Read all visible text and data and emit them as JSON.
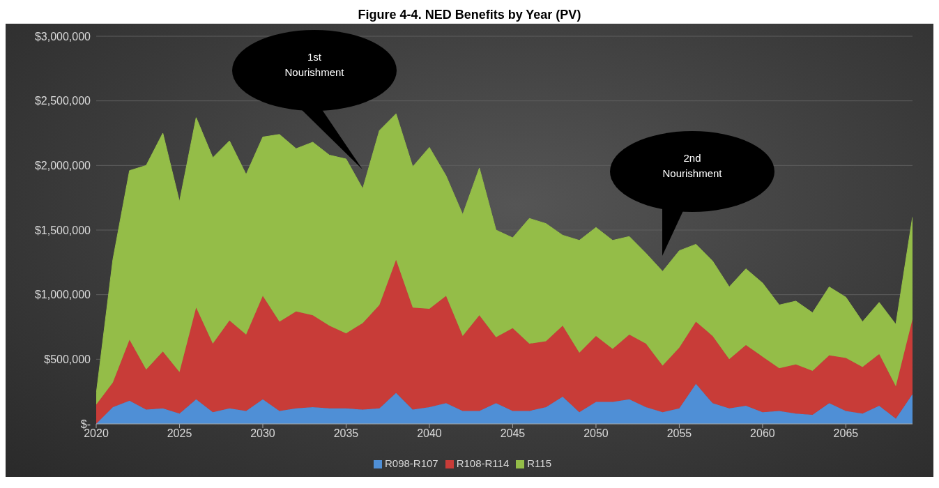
{
  "chart_data": {
    "type": "area",
    "title": "Figure 4-4. NED Benefits by Year (PV)",
    "stacked": true,
    "x": [
      2020,
      2021,
      2022,
      2023,
      2024,
      2025,
      2026,
      2027,
      2028,
      2029,
      2030,
      2031,
      2032,
      2033,
      2034,
      2035,
      2036,
      2037,
      2038,
      2039,
      2040,
      2041,
      2042,
      2043,
      2044,
      2045,
      2046,
      2047,
      2048,
      2049,
      2050,
      2051,
      2052,
      2053,
      2054,
      2055,
      2056,
      2057,
      2058,
      2059,
      2060,
      2061,
      2062,
      2063,
      2064,
      2065,
      2066,
      2067,
      2068,
      2069
    ],
    "series": [
      {
        "name": "R098-R107",
        "color": "#4f8fd6",
        "values": [
          0,
          130000,
          180000,
          110000,
          120000,
          80000,
          190000,
          90000,
          120000,
          100000,
          190000,
          100000,
          120000,
          130000,
          120000,
          120000,
          110000,
          120000,
          240000,
          110000,
          130000,
          160000,
          100000,
          100000,
          160000,
          100000,
          100000,
          130000,
          210000,
          90000,
          170000,
          170000,
          190000,
          130000,
          90000,
          120000,
          310000,
          160000,
          120000,
          140000,
          90000,
          100000,
          80000,
          70000,
          160000,
          100000,
          80000,
          140000,
          40000,
          230000
        ]
      },
      {
        "name": "R108-R114",
        "color": "#c83c38",
        "values": [
          148000,
          190000,
          470000,
          310000,
          440000,
          320000,
          710000,
          530000,
          680000,
          590000,
          800000,
          690000,
          750000,
          710000,
          640000,
          580000,
          670000,
          800000,
          1030000,
          790000,
          760000,
          830000,
          580000,
          740000,
          510000,
          640000,
          520000,
          510000,
          550000,
          460000,
          510000,
          410000,
          500000,
          490000,
          360000,
          470000,
          480000,
          520000,
          380000,
          470000,
          430000,
          330000,
          380000,
          340000,
          370000,
          410000,
          360000,
          400000,
          250000,
          580000
        ]
      },
      {
        "name": "R115",
        "color": "#94bd48",
        "values": [
          82000,
          950000,
          1310000,
          1580000,
          1690000,
          1320000,
          1470000,
          1440000,
          1390000,
          1240000,
          1230000,
          1450000,
          1260000,
          1340000,
          1320000,
          1350000,
          1040000,
          1350000,
          1130000,
          1090000,
          1250000,
          930000,
          940000,
          1140000,
          830000,
          700000,
          970000,
          910000,
          700000,
          870000,
          840000,
          840000,
          760000,
          700000,
          730000,
          750000,
          600000,
          580000,
          560000,
          590000,
          570000,
          490000,
          490000,
          450000,
          530000,
          470000,
          350000,
          400000,
          480000,
          790000
        ]
      }
    ],
    "xlim": [
      2020,
      2069
    ],
    "xticks": [
      2020,
      2025,
      2030,
      2035,
      2040,
      2045,
      2050,
      2055,
      2060,
      2065
    ],
    "ylim": [
      0,
      3000000
    ],
    "yticks": [
      {
        "value": 0,
        "label": "$-"
      },
      {
        "value": 500000,
        "label": "$500,000"
      },
      {
        "value": 1000000,
        "label": "$1,000,000"
      },
      {
        "value": 1500000,
        "label": "$1,500,000"
      },
      {
        "value": 2000000,
        "label": "$2,000,000"
      },
      {
        "value": 2500000,
        "label": "$2,500,000"
      },
      {
        "value": 3000000,
        "label": "$3,000,000"
      }
    ],
    "grid": "y",
    "legend": "bottom",
    "annotations": [
      "1st Nourishment",
      "2nd Nourishment"
    ]
  }
}
